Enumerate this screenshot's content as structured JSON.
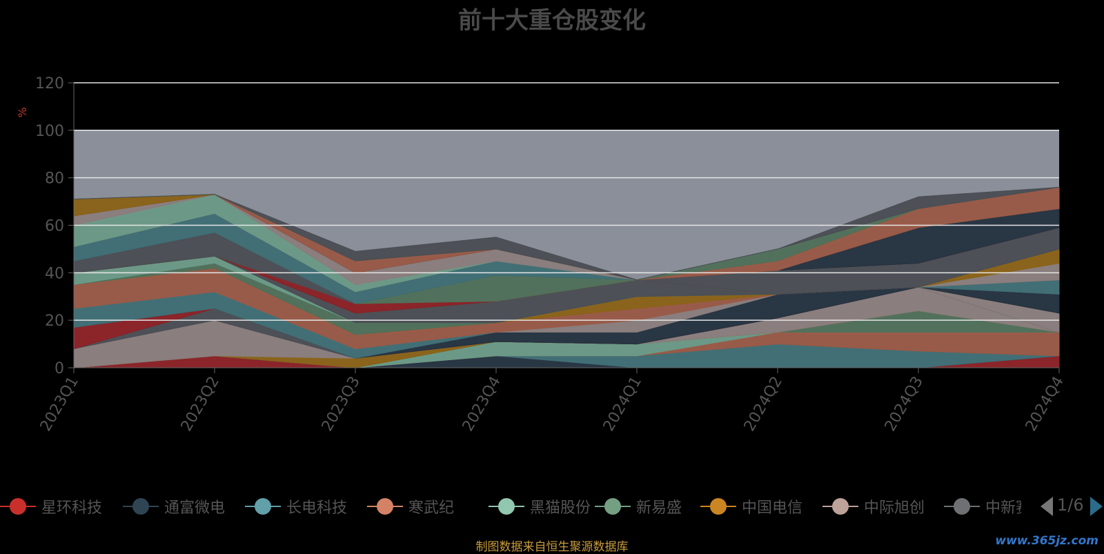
{
  "chart_data": {
    "type": "area",
    "title": "前十大重仓股变化",
    "ylabel": "%",
    "ylim": [
      0,
      120
    ],
    "yticks": [
      "0",
      "20",
      "40",
      "60",
      "80",
      "100",
      "120"
    ],
    "categories": [
      "2023Q1",
      "2023Q2",
      "2023Q3",
      "2023Q4",
      "2024Q1",
      "2024Q2",
      "2024Q3",
      "2024Q4"
    ],
    "series": [
      {
        "name": "星环科技",
        "color": "#8b2024",
        "values": [
          0,
          5,
          0,
          0,
          0,
          0,
          0,
          5
        ]
      },
      {
        "name": "通富微电",
        "color": "#24323f",
        "values": [
          0,
          0,
          0,
          5,
          0,
          0,
          0,
          0
        ]
      },
      {
        "name": "长电科技",
        "color": "#3e6e74",
        "values": [
          0,
          0,
          0,
          0,
          5,
          10,
          7,
          0
        ]
      },
      {
        "name": "寒武纪",
        "color": "#9a5844",
        "values": [
          0,
          0,
          0,
          0,
          0,
          5,
          8,
          10
        ]
      },
      {
        "name": "黑猫股份",
        "color": "#6a9a86",
        "values": [
          0,
          0,
          0,
          6,
          5,
          0,
          0,
          0
        ]
      },
      {
        "name": "新易盛",
        "color": "#4f7058",
        "values": [
          0,
          0,
          0,
          0,
          0,
          0,
          9,
          0
        ]
      },
      {
        "name": "中国电信",
        "color": "#8a6215",
        "values": [
          0,
          0,
          4,
          0,
          0,
          0,
          0,
          0
        ]
      },
      {
        "name": "中际旭创",
        "color": "#8a7d7c",
        "values": [
          8,
          15,
          0,
          0,
          0,
          6,
          10,
          0
        ]
      },
      {
        "name": "中新赛克",
        "color": "#4a4d53",
        "values": [
          0,
          5,
          0,
          0,
          0,
          0,
          0,
          0
        ]
      },
      {
        "name": "星环科技",
        "color": "#8b2024",
        "values": [
          9,
          0,
          0,
          0,
          0,
          0,
          0,
          0
        ]
      },
      {
        "name": "通富微电",
        "color": "#24323f",
        "values": [
          0,
          0,
          0,
          4,
          5,
          10,
          0,
          0
        ]
      },
      {
        "name": "长电科技",
        "color": "#3e6e74",
        "values": [
          8,
          7,
          4,
          0,
          0,
          0,
          0,
          0
        ]
      },
      {
        "name": "中际旭创",
        "color": "#8a7d7c",
        "values": [
          0,
          0,
          0,
          0,
          5,
          0,
          0,
          8
        ]
      },
      {
        "name": "寒武纪",
        "color": "#9a5844",
        "values": [
          10,
          10,
          6,
          4,
          5,
          0,
          0,
          0
        ]
      },
      {
        "name": "中国电信",
        "color": "#8a6215",
        "values": [
          0,
          0,
          0,
          0,
          5,
          0,
          0,
          0
        ]
      },
      {
        "name": "新易盛",
        "color": "#4f7058",
        "values": [
          0,
          2,
          5,
          0,
          0,
          0,
          0,
          0
        ]
      },
      {
        "name": "通富微电",
        "color": "#24323f",
        "values": [
          0,
          0,
          0,
          0,
          0,
          0,
          0,
          8
        ]
      },
      {
        "name": "黑猫股份",
        "color": "#6a9a86",
        "values": [
          5,
          3,
          0,
          0,
          0,
          0,
          0,
          0
        ]
      },
      {
        "name": "中新赛克",
        "color": "#4a4d53",
        "values": [
          0,
          0,
          4,
          9,
          7,
          0,
          0,
          0
        ]
      },
      {
        "name": "长电科技",
        "color": "#3e6e74",
        "values": [
          0,
          0,
          0,
          0,
          0,
          0,
          0,
          6
        ]
      },
      {
        "name": "寒武纪",
        "color": "#9a5844",
        "values": [
          0,
          0,
          0,
          0,
          0,
          0,
          0,
          0
        ]
      },
      {
        "name": "中际旭创",
        "color": "#8a7d7c",
        "values": [
          0,
          0,
          0,
          0,
          0,
          0,
          0,
          7
        ]
      },
      {
        "name": "中国电信",
        "color": "#8a6215",
        "values": [
          0,
          0,
          0,
          0,
          0,
          0,
          0,
          6
        ]
      },
      {
        "name": "通富微电",
        "color": "#24323f",
        "values": [
          0,
          0,
          0,
          0,
          0,
          0,
          0,
          0
        ]
      },
      {
        "name": "星环科技",
        "color": "#8b2024",
        "values": [
          0,
          0,
          4,
          0,
          0,
          0,
          0,
          0
        ]
      },
      {
        "name": "新易盛",
        "color": "#4f7058",
        "values": [
          0,
          0,
          0,
          11,
          0,
          0,
          0,
          0
        ]
      },
      {
        "name": "中新赛克",
        "color": "#4a4d53",
        "values": [
          5,
          10,
          0,
          0,
          0,
          10,
          10,
          9
        ]
      },
      {
        "name": "长电科技",
        "color": "#3e6e74",
        "values": [
          6,
          8,
          5,
          6,
          0,
          0,
          0,
          0
        ]
      },
      {
        "name": "寒武纪",
        "color": "#9a5844",
        "values": [
          0,
          0,
          0,
          0,
          0,
          0,
          0,
          0
        ]
      },
      {
        "name": "黑猫股份",
        "color": "#6a9a86",
        "values": [
          9,
          8,
          3,
          0,
          0,
          0,
          0,
          0
        ]
      },
      {
        "name": "中际旭创",
        "color": "#8a7d7c",
        "values": [
          4,
          0,
          5,
          5,
          0,
          0,
          0,
          0
        ]
      },
      {
        "name": "星环科技",
        "color": "#8b2024",
        "values": [
          0,
          0,
          0,
          0,
          0,
          0,
          0,
          0
        ]
      },
      {
        "name": "通富微电",
        "color": "#24323f",
        "values": [
          0,
          0,
          0,
          0,
          0,
          0,
          15,
          8
        ]
      },
      {
        "name": "寒武纪",
        "color": "#9a5844",
        "values": [
          0,
          0,
          5,
          0,
          0,
          4,
          8,
          9
        ]
      },
      {
        "name": "中国电信",
        "color": "#8a6215",
        "values": [
          7,
          0,
          0,
          0,
          0,
          0,
          0,
          0
        ]
      },
      {
        "name": "新易盛",
        "color": "#4f7058",
        "values": [
          0,
          0,
          0,
          0,
          0,
          5,
          0,
          0
        ]
      },
      {
        "name": "中新赛克",
        "color": "#4a4d53",
        "values": [
          0,
          0,
          4,
          5,
          0,
          0,
          5,
          0
        ]
      }
    ]
  },
  "legend": {
    "items": [
      {
        "name": "星环科技",
        "color": "#c9302c"
      },
      {
        "name": "通富微电",
        "color": "#2f4554"
      },
      {
        "name": "长电科技",
        "color": "#61a0a8"
      },
      {
        "name": "寒武纪",
        "color": "#d48265"
      },
      {
        "name": "黑猫股份",
        "color": "#91c7ae"
      },
      {
        "name": "新易盛",
        "color": "#749f83"
      },
      {
        "name": "中国电信",
        "color": "#ca8622"
      },
      {
        "name": "中际旭创",
        "color": "#bda29a"
      },
      {
        "name": "中新赛克",
        "color": "#6e7074"
      }
    ],
    "page_text": "1/6"
  },
  "footer": {
    "source": "制图数据来自恒生聚源数据库",
    "watermark": "www.365jz.com"
  }
}
